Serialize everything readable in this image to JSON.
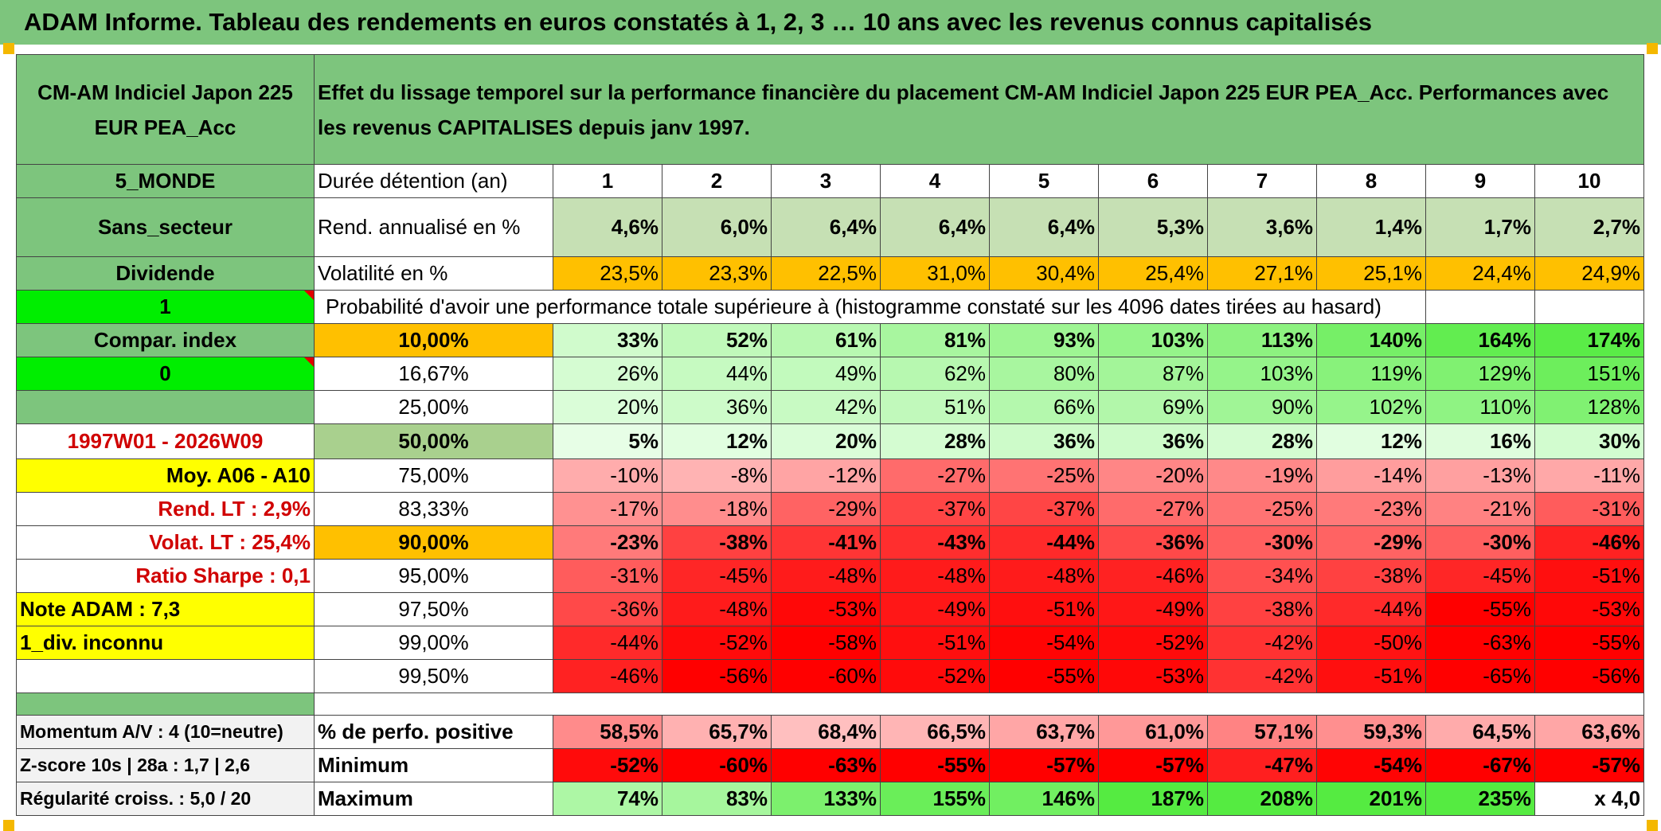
{
  "title": "ADAM Informe. Tableau des rendements en euros constatés à 1, 2, 3 … 10 ans avec les revenus connus capitalisés",
  "header": {
    "fund_name": "CM-AM Indiciel Japon 225 EUR PEA_Acc",
    "description": "Effet du lissage temporel sur la performance financière du placement CM-AM Indiciel Japon 225 EUR PEA_Acc. Performances avec les revenus CAPITALISES depuis janv 1997."
  },
  "left_labels": {
    "region": "5_MONDE",
    "sector": "Sans_secteur",
    "dividend": "Dividende",
    "dividend_value": "1",
    "compar_index": "Compar. index",
    "compar_value": "0",
    "period": "1997W01 - 2026W09",
    "moy": "Moy. A06 - A10",
    "rend_lt": "Rend. LT :   2,9%",
    "volat_lt": "Volat. LT :   25,4%",
    "sharpe": "Ratio Sharpe :   0,1",
    "note": "Note ADAM : 7,3",
    "div_inconnu": "1_div. inconnu",
    "momentum": "Momentum A/V : 4 (10=neutre)",
    "zscore": "Z-score 10s | 28a : 1,7 | 2,6",
    "regularite": "Régularité croiss. : 5,0 / 20"
  },
  "rows_labels": {
    "duree": "Durée détention (an)",
    "rend": "Rend. annualisé en %",
    "volat": "Volatilité en %",
    "proba": "Probabilité d'avoir une performance totale supérieure à (histogramme constaté sur les 4096 dates tirées au hasard)",
    "positive": "% de perfo. positive",
    "minimum": "Minimum",
    "maximum": "Maximum"
  },
  "years": [
    "1",
    "2",
    "3",
    "4",
    "5",
    "6",
    "7",
    "8",
    "9",
    "10"
  ],
  "rendement": [
    "4,6%",
    "6,0%",
    "6,4%",
    "6,4%",
    "6,4%",
    "5,3%",
    "3,6%",
    "1,4%",
    "1,7%",
    "2,7%"
  ],
  "volatilite": [
    "23,5%",
    "23,3%",
    "22,5%",
    "31,0%",
    "30,4%",
    "25,4%",
    "27,1%",
    "25,1%",
    "24,4%",
    "24,9%"
  ],
  "probability_rows": [
    {
      "level": "10,00%",
      "values": [
        "33%",
        "52%",
        "61%",
        "81%",
        "93%",
        "103%",
        "113%",
        "140%",
        "164%",
        "174%"
      ]
    },
    {
      "level": "16,67%",
      "values": [
        "26%",
        "44%",
        "49%",
        "62%",
        "80%",
        "87%",
        "103%",
        "119%",
        "129%",
        "151%"
      ]
    },
    {
      "level": "25,00%",
      "values": [
        "20%",
        "36%",
        "42%",
        "51%",
        "66%",
        "69%",
        "90%",
        "102%",
        "110%",
        "128%"
      ]
    },
    {
      "level": "50,00%",
      "values": [
        "5%",
        "12%",
        "20%",
        "28%",
        "36%",
        "36%",
        "28%",
        "12%",
        "16%",
        "30%"
      ]
    },
    {
      "level": "75,00%",
      "values": [
        "-10%",
        "-8%",
        "-12%",
        "-27%",
        "-25%",
        "-20%",
        "-19%",
        "-14%",
        "-13%",
        "-11%"
      ]
    },
    {
      "level": "83,33%",
      "values": [
        "-17%",
        "-18%",
        "-29%",
        "-37%",
        "-37%",
        "-27%",
        "-25%",
        "-23%",
        "-21%",
        "-31%"
      ]
    },
    {
      "level": "90,00%",
      "values": [
        "-23%",
        "-38%",
        "-41%",
        "-43%",
        "-44%",
        "-36%",
        "-30%",
        "-29%",
        "-30%",
        "-46%"
      ]
    },
    {
      "level": "95,00%",
      "values": [
        "-31%",
        "-45%",
        "-48%",
        "-48%",
        "-48%",
        "-46%",
        "-34%",
        "-38%",
        "-45%",
        "-51%"
      ]
    },
    {
      "level": "97,50%",
      "values": [
        "-36%",
        "-48%",
        "-53%",
        "-49%",
        "-51%",
        "-49%",
        "-38%",
        "-44%",
        "-55%",
        "-53%"
      ]
    },
    {
      "level": "99,00%",
      "values": [
        "-44%",
        "-52%",
        "-58%",
        "-51%",
        "-54%",
        "-52%",
        "-42%",
        "-50%",
        "-63%",
        "-55%"
      ]
    },
    {
      "level": "99,50%",
      "values": [
        "-46%",
        "-56%",
        "-60%",
        "-52%",
        "-55%",
        "-53%",
        "-42%",
        "-51%",
        "-65%",
        "-56%"
      ]
    }
  ],
  "positive": [
    "58,5%",
    "65,7%",
    "68,4%",
    "66,5%",
    "63,7%",
    "61,0%",
    "57,1%",
    "59,3%",
    "64,5%",
    "63,6%"
  ],
  "minimum": [
    "-52%",
    "-60%",
    "-63%",
    "-55%",
    "-57%",
    "-57%",
    "-47%",
    "-54%",
    "-67%",
    "-57%"
  ],
  "maximum": [
    "74%",
    "83%",
    "133%",
    "155%",
    "146%",
    "187%",
    "208%",
    "201%",
    "235%",
    "x 4,0"
  ],
  "colors": {
    "title_green": "#7dc57d",
    "bright_green": "#00ee00",
    "yellow": "#ffff00",
    "orange": "#ffc000",
    "red": "#ff0000"
  }
}
